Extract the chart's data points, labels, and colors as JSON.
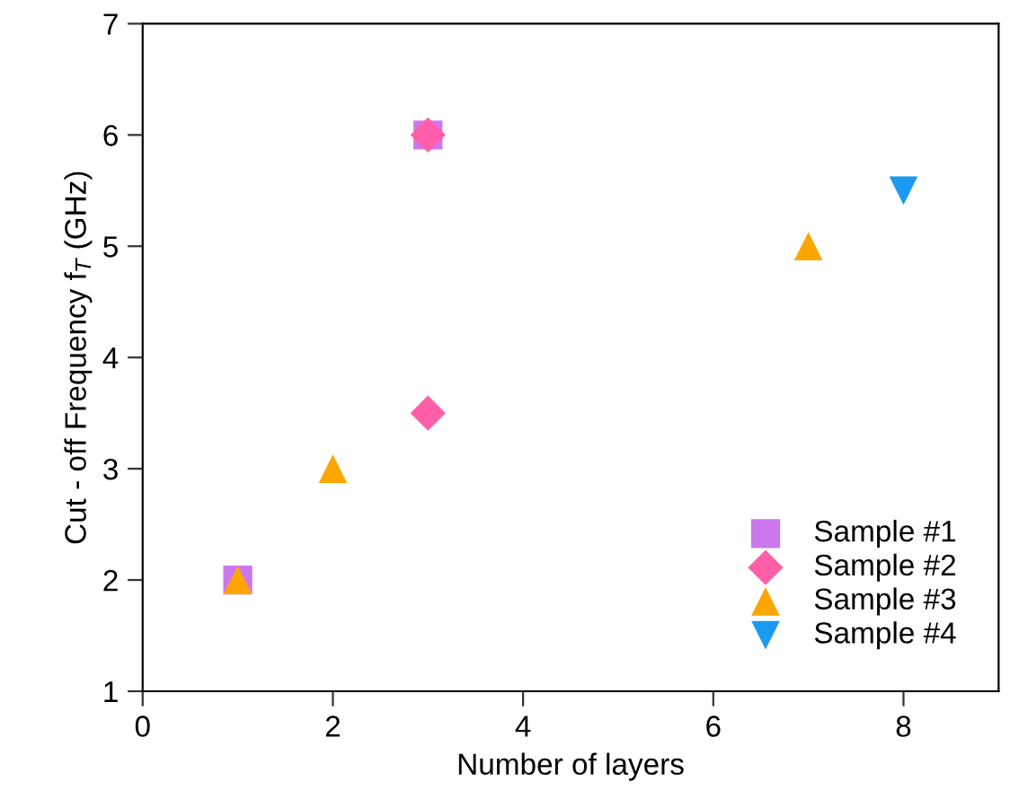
{
  "chart_data": {
    "type": "scatter",
    "xlabel": "Number of layers",
    "ylabel": "Cut - off Frequency f$_{T}$ (GHz)",
    "xlim": [
      0,
      9
    ],
    "ylim": [
      1,
      7
    ],
    "xticks": [
      0,
      2,
      4,
      6,
      8
    ],
    "yticks": [
      1,
      2,
      3,
      4,
      5,
      6,
      7
    ],
    "grid": false,
    "legend": "bottom right",
    "series": [
      {
        "name": "Sample #1",
        "color": "#cc77ee",
        "marker": "square",
        "x": [
          1,
          3
        ],
        "values": [
          2,
          6
        ]
      },
      {
        "name": "Sample #2",
        "color": "#ff5fa8",
        "marker": "diamond",
        "x": [
          3,
          3
        ],
        "values": [
          6,
          3.5
        ]
      },
      {
        "name": "Sample #3",
        "color": "#ffa500",
        "marker": "triangle",
        "x": [
          1,
          2,
          7
        ],
        "values": [
          2,
          3,
          5
        ]
      },
      {
        "name": "Sample #4",
        "color": "#1a9af0",
        "marker": "triangle_down",
        "x": [
          8
        ],
        "values": [
          5.5
        ]
      }
    ]
  }
}
